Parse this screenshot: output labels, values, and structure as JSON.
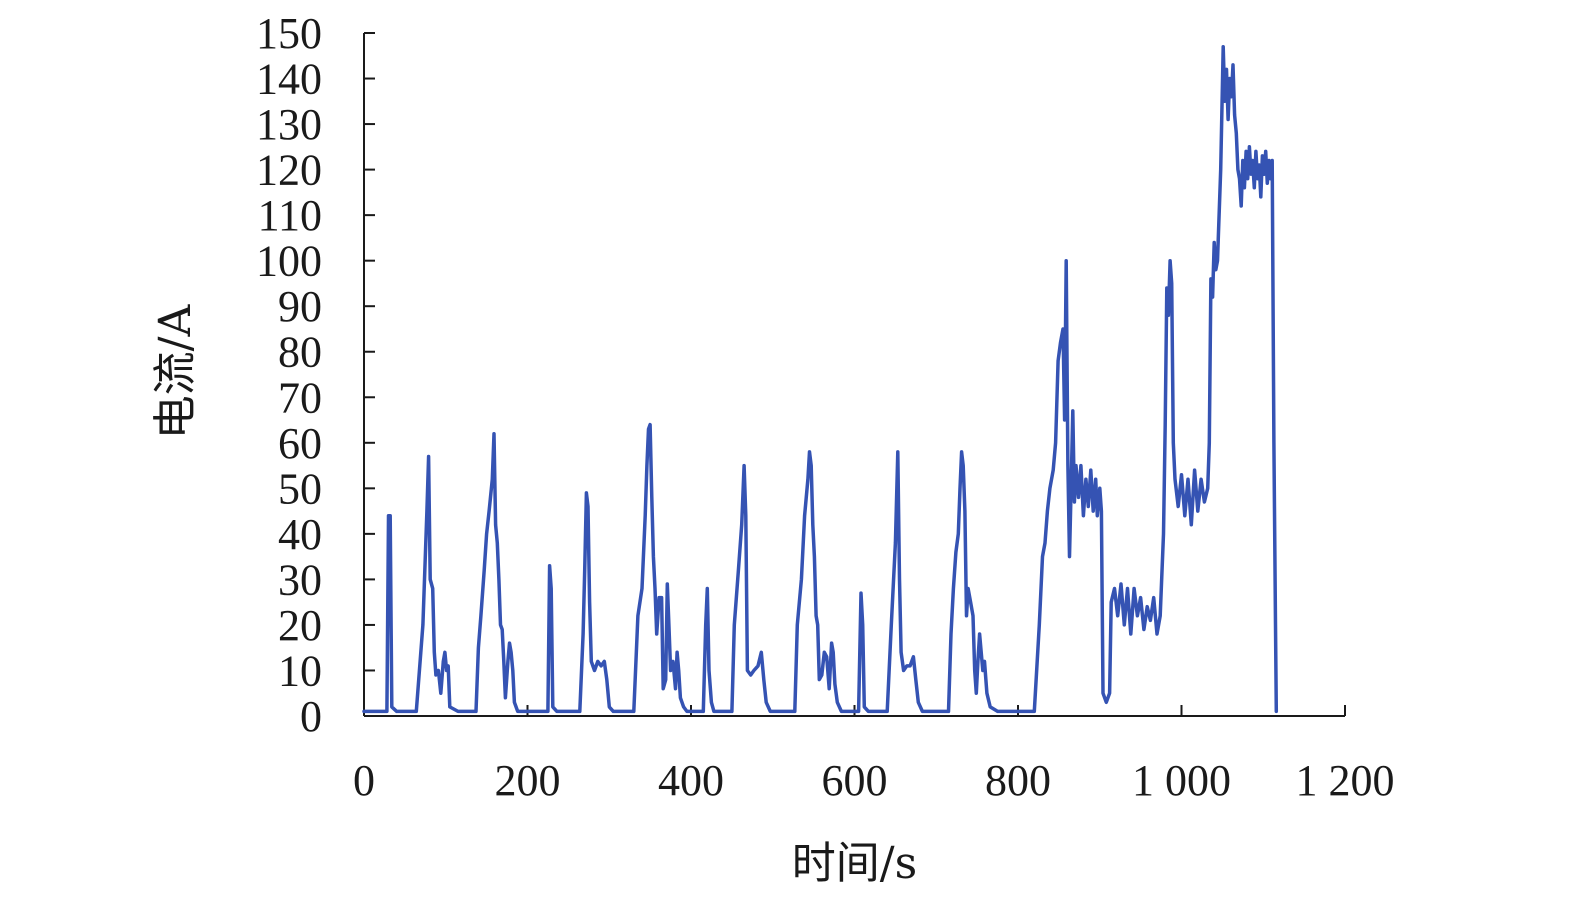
{
  "chart_data": {
    "type": "line",
    "title": "",
    "xlabel": "时间/s",
    "ylabel": "电流/A",
    "xlim": [
      0,
      1200
    ],
    "ylim": [
      0,
      150
    ],
    "grid": false,
    "x_ticks": [
      0,
      200,
      400,
      600,
      800,
      1000,
      1200
    ],
    "x_tick_labels": [
      "0",
      "200",
      "400",
      "600",
      "800",
      "1 000",
      "1 200"
    ],
    "y_ticks": [
      0,
      10,
      20,
      30,
      40,
      50,
      60,
      70,
      80,
      90,
      100,
      110,
      120,
      130,
      140,
      150
    ],
    "y_tick_labels": [
      "0",
      "10",
      "20",
      "30",
      "40",
      "50",
      "60",
      "70",
      "80",
      "90",
      "100",
      "110",
      "120",
      "130",
      "140",
      "150"
    ],
    "series": [
      {
        "color": "#3553b3",
        "points": [
          [
            0,
            1
          ],
          [
            28,
            1
          ],
          [
            30,
            44
          ],
          [
            32,
            44
          ],
          [
            34,
            2
          ],
          [
            40,
            1
          ],
          [
            64,
            1
          ],
          [
            72,
            20
          ],
          [
            77,
            45
          ],
          [
            79,
            57
          ],
          [
            81,
            30
          ],
          [
            84,
            28
          ],
          [
            86,
            14
          ],
          [
            88,
            9
          ],
          [
            91,
            10
          ],
          [
            94,
            5
          ],
          [
            97,
            12
          ],
          [
            99,
            14
          ],
          [
            101,
            10
          ],
          [
            103,
            11
          ],
          [
            105,
            2
          ],
          [
            115,
            1
          ],
          [
            137,
            1
          ],
          [
            140,
            15
          ],
          [
            143,
            22
          ],
          [
            147,
            32
          ],
          [
            150,
            40
          ],
          [
            153,
            45
          ],
          [
            157,
            52
          ],
          [
            159,
            62
          ],
          [
            161,
            42
          ],
          [
            163,
            38
          ],
          [
            165,
            30
          ],
          [
            167,
            20
          ],
          [
            169,
            19
          ],
          [
            171,
            12
          ],
          [
            173,
            4
          ],
          [
            176,
            12
          ],
          [
            178,
            16
          ],
          [
            180,
            14
          ],
          [
            182,
            10
          ],
          [
            184,
            3
          ],
          [
            188,
            1
          ],
          [
            225,
            1
          ],
          [
            227,
            33
          ],
          [
            229,
            28
          ],
          [
            231,
            2
          ],
          [
            236,
            1
          ],
          [
            264,
            1
          ],
          [
            268,
            18
          ],
          [
            270,
            32
          ],
          [
            272,
            49
          ],
          [
            274,
            46
          ],
          [
            276,
            25
          ],
          [
            278,
            12
          ],
          [
            282,
            10
          ],
          [
            286,
            12
          ],
          [
            290,
            11
          ],
          [
            294,
            12
          ],
          [
            297,
            8
          ],
          [
            300,
            2
          ],
          [
            305,
            1
          ],
          [
            330,
            1
          ],
          [
            335,
            22
          ],
          [
            340,
            28
          ],
          [
            344,
            44
          ],
          [
            346,
            55
          ],
          [
            348,
            63
          ],
          [
            350,
            64
          ],
          [
            352,
            48
          ],
          [
            354,
            35
          ],
          [
            356,
            28
          ],
          [
            358,
            18
          ],
          [
            361,
            26
          ],
          [
            364,
            26
          ],
          [
            366,
            6
          ],
          [
            369,
            8
          ],
          [
            371,
            29
          ],
          [
            373,
            20
          ],
          [
            375,
            10
          ],
          [
            378,
            12
          ],
          [
            381,
            6
          ],
          [
            383,
            14
          ],
          [
            385,
            10
          ],
          [
            387,
            4
          ],
          [
            391,
            2
          ],
          [
            395,
            1
          ],
          [
            415,
            1
          ],
          [
            418,
            20
          ],
          [
            420,
            28
          ],
          [
            422,
            10
          ],
          [
            425,
            3
          ],
          [
            428,
            1
          ],
          [
            450,
            1
          ],
          [
            453,
            20
          ],
          [
            458,
            32
          ],
          [
            462,
            42
          ],
          [
            465,
            55
          ],
          [
            467,
            44
          ],
          [
            469,
            10
          ],
          [
            473,
            9
          ],
          [
            477,
            10
          ],
          [
            482,
            11
          ],
          [
            486,
            14
          ],
          [
            489,
            8
          ],
          [
            492,
            3
          ],
          [
            497,
            1
          ],
          [
            527,
            1
          ],
          [
            530,
            20
          ],
          [
            535,
            30
          ],
          [
            539,
            44
          ],
          [
            543,
            52
          ],
          [
            545,
            58
          ],
          [
            547,
            55
          ],
          [
            549,
            42
          ],
          [
            551,
            35
          ],
          [
            553,
            22
          ],
          [
            555,
            20
          ],
          [
            557,
            8
          ],
          [
            560,
            9
          ],
          [
            563,
            14
          ],
          [
            566,
            13
          ],
          [
            569,
            6
          ],
          [
            572,
            16
          ],
          [
            574,
            14
          ],
          [
            576,
            7
          ],
          [
            579,
            3
          ],
          [
            584,
            1
          ],
          [
            605,
            1
          ],
          [
            608,
            27
          ],
          [
            610,
            20
          ],
          [
            612,
            2
          ],
          [
            617,
            1
          ],
          [
            640,
            1
          ],
          [
            645,
            20
          ],
          [
            650,
            38
          ],
          [
            653,
            58
          ],
          [
            655,
            30
          ],
          [
            657,
            14
          ],
          [
            660,
            10
          ],
          [
            664,
            11
          ],
          [
            668,
            11
          ],
          [
            672,
            13
          ],
          [
            675,
            8
          ],
          [
            678,
            3
          ],
          [
            683,
            1
          ],
          [
            715,
            1
          ],
          [
            718,
            18
          ],
          [
            721,
            28
          ],
          [
            724,
            36
          ],
          [
            727,
            40
          ],
          [
            729,
            50
          ],
          [
            731,
            58
          ],
          [
            733,
            55
          ],
          [
            735,
            45
          ],
          [
            737,
            22
          ],
          [
            739,
            28
          ],
          [
            742,
            25
          ],
          [
            745,
            22
          ],
          [
            747,
            10
          ],
          [
            749,
            5
          ],
          [
            751,
            12
          ],
          [
            753,
            18
          ],
          [
            755,
            14
          ],
          [
            757,
            10
          ],
          [
            759,
            12
          ],
          [
            762,
            5
          ],
          [
            766,
            2
          ],
          [
            775,
            1
          ],
          [
            820,
            1
          ],
          [
            826,
            20
          ],
          [
            830,
            35
          ],
          [
            833,
            38
          ],
          [
            836,
            45
          ],
          [
            839,
            50
          ],
          [
            843,
            54
          ],
          [
            846,
            60
          ],
          [
            849,
            78
          ],
          [
            852,
            82
          ],
          [
            855,
            85
          ],
          [
            857,
            65
          ],
          [
            859,
            100
          ],
          [
            861,
            55
          ],
          [
            863,
            35
          ],
          [
            865,
            50
          ],
          [
            867,
            67
          ],
          [
            869,
            47
          ],
          [
            871,
            55
          ],
          [
            874,
            48
          ],
          [
            877,
            55
          ],
          [
            880,
            44
          ],
          [
            883,
            52
          ],
          [
            886,
            46
          ],
          [
            889,
            54
          ],
          [
            892,
            45
          ],
          [
            895,
            52
          ],
          [
            897,
            44
          ],
          [
            900,
            50
          ],
          [
            902,
            45
          ],
          [
            904,
            5
          ],
          [
            908,
            3
          ],
          [
            912,
            5
          ],
          [
            914,
            25
          ],
          [
            918,
            28
          ],
          [
            922,
            22
          ],
          [
            926,
            29
          ],
          [
            930,
            20
          ],
          [
            934,
            28
          ],
          [
            938,
            18
          ],
          [
            942,
            28
          ],
          [
            946,
            22
          ],
          [
            950,
            26
          ],
          [
            954,
            19
          ],
          [
            958,
            24
          ],
          [
            962,
            21
          ],
          [
            966,
            26
          ],
          [
            970,
            18
          ],
          [
            974,
            22
          ],
          [
            978,
            40
          ],
          [
            980,
            64
          ],
          [
            982,
            94
          ],
          [
            984,
            88
          ],
          [
            986,
            100
          ],
          [
            988,
            95
          ],
          [
            990,
            60
          ],
          [
            992,
            52
          ],
          [
            996,
            46
          ],
          [
            1000,
            53
          ],
          [
            1004,
            44
          ],
          [
            1008,
            52
          ],
          [
            1012,
            42
          ],
          [
            1016,
            54
          ],
          [
            1020,
            45
          ],
          [
            1024,
            52
          ],
          [
            1028,
            47
          ],
          [
            1032,
            50
          ],
          [
            1034,
            60
          ],
          [
            1036,
            96
          ],
          [
            1038,
            92
          ],
          [
            1040,
            104
          ],
          [
            1042,
            98
          ],
          [
            1044,
            100
          ],
          [
            1048,
            120
          ],
          [
            1051,
            147
          ],
          [
            1053,
            135
          ],
          [
            1055,
            142
          ],
          [
            1057,
            131
          ],
          [
            1059,
            140
          ],
          [
            1061,
            136
          ],
          [
            1063,
            143
          ],
          [
            1065,
            132
          ],
          [
            1067,
            128
          ],
          [
            1069,
            120
          ],
          [
            1071,
            118
          ],
          [
            1073,
            112
          ],
          [
            1075,
            122
          ],
          [
            1077,
            116
          ],
          [
            1079,
            124
          ],
          [
            1081,
            118
          ],
          [
            1083,
            125
          ],
          [
            1085,
            119
          ],
          [
            1087,
            122
          ],
          [
            1089,
            116
          ],
          [
            1091,
            124
          ],
          [
            1093,
            118
          ],
          [
            1095,
            121
          ],
          [
            1097,
            114
          ],
          [
            1099,
            123
          ],
          [
            1101,
            119
          ],
          [
            1103,
            124
          ],
          [
            1105,
            117
          ],
          [
            1107,
            122
          ],
          [
            1109,
            118
          ],
          [
            1111,
            122
          ],
          [
            1113,
            60
          ],
          [
            1115,
            20
          ],
          [
            1116,
            1
          ]
        ]
      }
    ]
  }
}
